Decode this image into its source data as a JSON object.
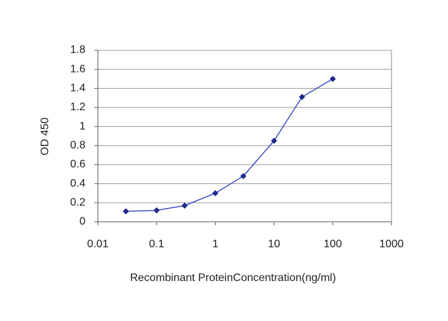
{
  "chart_data": {
    "type": "line",
    "x_label": "Recombinant ProteinConcentration(ng/ml)",
    "y_label": "OD 450",
    "x": [
      0.03,
      0.1,
      0.3,
      1,
      3,
      10,
      30,
      100
    ],
    "series": [
      {
        "color": "#3a4fbf",
        "marker_color": "#1f2a8a",
        "values": [
          0.11,
          0.12,
          0.17,
          0.3,
          0.48,
          0.85,
          1.31,
          1.5
        ]
      }
    ],
    "xscale": "log",
    "xlim": [
      0.01,
      1000
    ],
    "xticks": [
      0.01,
      0.1,
      1,
      10,
      100,
      1000
    ],
    "ylim": [
      0,
      1.8
    ],
    "yticks": [
      0,
      0.2,
      0.4,
      0.6,
      0.8,
      1,
      1.2,
      1.4,
      1.6,
      1.8
    ],
    "grid": true
  }
}
